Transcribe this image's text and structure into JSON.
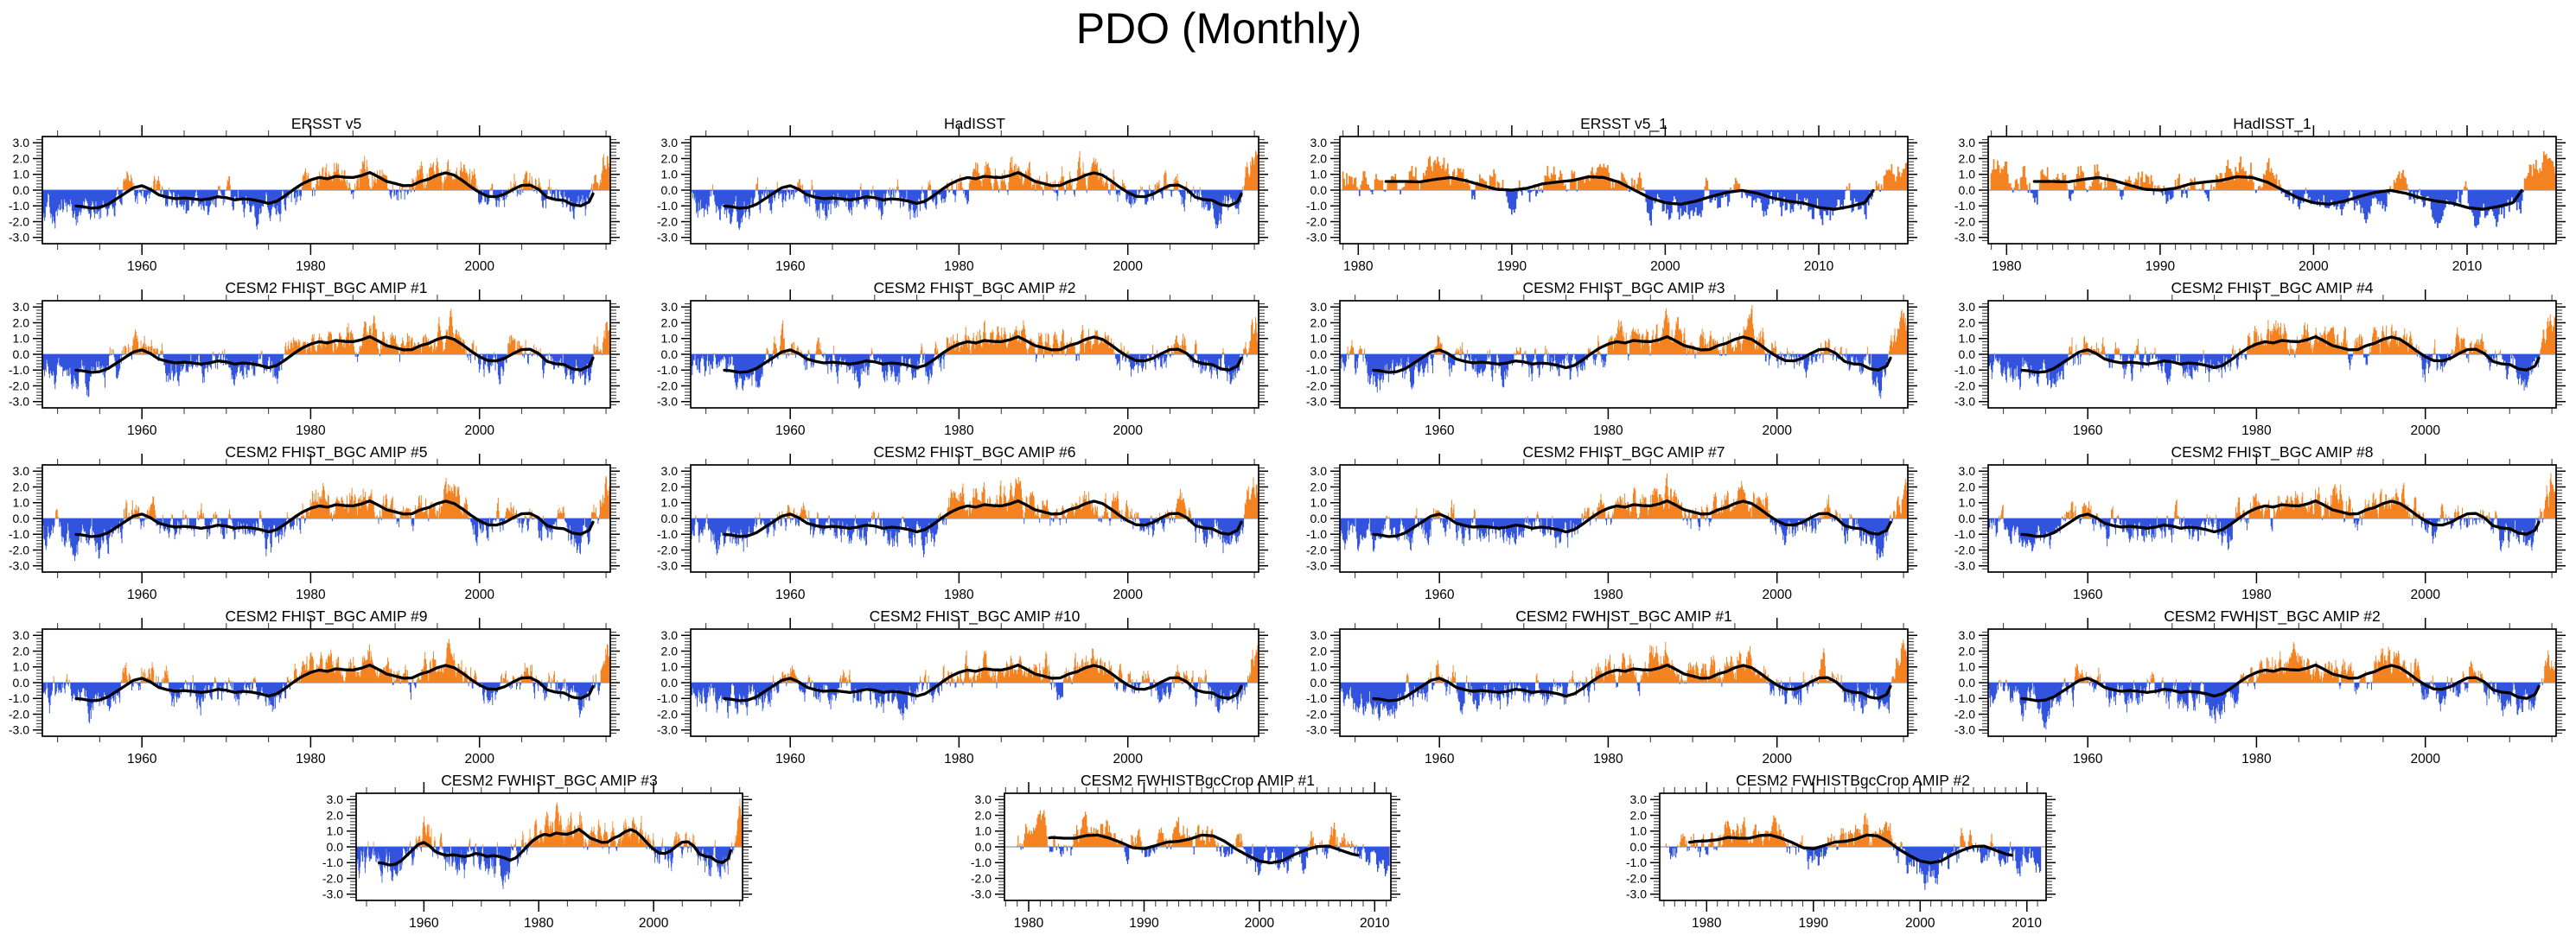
{
  "title": "PDO (Monthly)",
  "colors": {
    "positive": "#F58220",
    "negative": "#3153DE",
    "smooth_line": "#000000",
    "zero_line": "#9a9a9a",
    "frame": "#000000",
    "tick_major": "#000000",
    "tick_minor": "#444444",
    "text": "#000000"
  },
  "chart_data": {
    "type": "bar",
    "subtype": "monthly-anomaly-bars-with-lowpass-line",
    "title": "PDO (Monthly)",
    "ylabel": "",
    "ylim": [
      -3.4,
      3.4
    ],
    "yticks": [
      3.0,
      2.0,
      1.0,
      0.0,
      -1.0,
      -2.0,
      -3.0
    ],
    "ytick_labels": [
      "3.0",
      "2.0",
      "1.0",
      "0.0",
      "-1.0",
      "-2.0",
      "-3.0"
    ],
    "y_minor_step": 0.2,
    "grid": "off",
    "legend": "none",
    "shapes": {
      "long": {
        "years": [
          1948,
          1949,
          1950,
          1951,
          1952,
          1953,
          1954,
          1955,
          1956,
          1957,
          1958,
          1959,
          1960,
          1961,
          1962,
          1963,
          1964,
          1965,
          1966,
          1967,
          1968,
          1969,
          1970,
          1971,
          1972,
          1973,
          1974,
          1975,
          1976,
          1977,
          1978,
          1979,
          1980,
          1981,
          1982,
          1983,
          1984,
          1985,
          1986,
          1987,
          1988,
          1989,
          1990,
          1991,
          1992,
          1993,
          1994,
          1995,
          1996,
          1997,
          1998,
          1999,
          2000,
          2001,
          2002,
          2003,
          2004,
          2005,
          2006,
          2007,
          2008,
          2009,
          2010,
          2011,
          2012,
          2013,
          2014,
          2015
        ],
        "values": [
          -0.7,
          -0.8,
          -0.75,
          -0.95,
          -1.0,
          -1.05,
          -1.15,
          -1.1,
          -0.9,
          -0.55,
          -0.2,
          0.15,
          0.28,
          0.05,
          -0.3,
          -0.45,
          -0.55,
          -0.5,
          -0.55,
          -0.62,
          -0.55,
          -0.42,
          -0.48,
          -0.62,
          -0.55,
          -0.6,
          -0.7,
          -0.85,
          -0.7,
          -0.35,
          0.05,
          0.4,
          0.65,
          0.8,
          0.72,
          0.88,
          0.82,
          0.8,
          0.92,
          1.12,
          0.85,
          0.55,
          0.42,
          0.28,
          0.3,
          0.55,
          0.7,
          0.95,
          1.1,
          0.95,
          0.6,
          0.2,
          -0.15,
          -0.4,
          -0.42,
          -0.25,
          0.05,
          0.3,
          0.32,
          0.05,
          -0.45,
          -0.6,
          -0.65,
          -0.92,
          -1.0,
          -0.75,
          0.4,
          1.6
        ]
      },
      "short": {
        "years": [
          1979,
          1980,
          1981,
          1982,
          1983,
          1984,
          1985,
          1986,
          1987,
          1988,
          1989,
          1990,
          1991,
          1992,
          1993,
          1994,
          1995,
          1996,
          1997,
          1998,
          1999,
          2000,
          2001,
          2002,
          2003,
          2004,
          2005,
          2006,
          2007,
          2008,
          2009,
          2010,
          2011,
          2012,
          2013,
          2014,
          2015,
          2016
        ],
        "values": [
          0.9,
          0.6,
          0.55,
          0.55,
          0.55,
          0.52,
          0.68,
          0.8,
          0.6,
          0.32,
          0.05,
          0.0,
          0.12,
          0.4,
          0.52,
          0.62,
          0.85,
          0.8,
          0.5,
          0.0,
          -0.5,
          -0.8,
          -0.9,
          -0.7,
          -0.4,
          -0.15,
          -0.02,
          -0.2,
          -0.5,
          -0.7,
          -0.82,
          -1.1,
          -1.22,
          -1.05,
          -0.8,
          0.6,
          1.6,
          1.4
        ]
      },
      "crop": {
        "years": [
          1976,
          1977,
          1978,
          1979,
          1980,
          1981,
          1982,
          1983,
          1984,
          1985,
          1986,
          1987,
          1988,
          1989,
          1990,
          1991,
          1992,
          1993,
          1994,
          1995,
          1996,
          1997,
          1998,
          1999,
          2000,
          2001,
          2002,
          2003,
          2004,
          2005,
          2006,
          2007,
          2008,
          2009,
          2010,
          2011
        ],
        "values": [
          -0.2,
          0.0,
          0.25,
          0.35,
          0.38,
          0.45,
          0.6,
          0.55,
          0.55,
          0.72,
          0.75,
          0.55,
          0.28,
          -0.05,
          -0.12,
          0.08,
          0.3,
          0.35,
          0.5,
          0.75,
          0.7,
          0.35,
          -0.15,
          -0.55,
          -0.9,
          -1.02,
          -0.88,
          -0.5,
          -0.2,
          0.02,
          0.05,
          -0.2,
          -0.45,
          -0.6,
          -0.7,
          -0.75
        ]
      }
    },
    "panels": [
      {
        "id": "ersst-v5",
        "title": "ERSST v5",
        "row": 0,
        "col": 0,
        "shape": "long",
        "seed": 101,
        "x_domain": [
          1948.2,
          2015.5
        ],
        "x_ticks": [
          1960,
          1980,
          2000
        ],
        "x_minor_step": 5,
        "data_range": [
          1948.3,
          2015.45
        ],
        "line_range": [
          1952.2,
          2013.5
        ]
      },
      {
        "id": "hadisst",
        "title": "HadISST",
        "row": 0,
        "col": 1,
        "shape": "long",
        "seed": 102,
        "x_domain": [
          1948.2,
          2015.5
        ],
        "x_ticks": [
          1960,
          1980,
          2000
        ],
        "x_minor_step": 5,
        "data_range": [
          1948.3,
          2015.45
        ],
        "line_range": [
          1952.2,
          2013.5
        ]
      },
      {
        "id": "ersst-v5-1",
        "title": "ERSST v5_1",
        "row": 0,
        "col": 2,
        "shape": "short",
        "seed": 103,
        "x_domain": [
          1978.8,
          2015.8
        ],
        "x_ticks": [
          1980,
          1990,
          2000,
          2010
        ],
        "x_minor_step": 1,
        "data_range": [
          1979.0,
          2015.75
        ],
        "line_range": [
          1981.8,
          2013.6
        ]
      },
      {
        "id": "hadisst-1",
        "title": "HadISST_1",
        "row": 0,
        "col": 3,
        "shape": "short",
        "seed": 104,
        "x_domain": [
          1978.8,
          2015.8
        ],
        "x_ticks": [
          1980,
          1990,
          2000,
          2010
        ],
        "x_minor_step": 1,
        "data_range": [
          1979.0,
          2015.75
        ],
        "line_range": [
          1981.8,
          2013.6
        ]
      },
      {
        "id": "fhist-1",
        "title": "CESM2 FHIST_BGC AMIP #1",
        "row": 1,
        "col": 0,
        "shape": "long",
        "seed": 201,
        "x_domain": [
          1948.2,
          2015.5
        ],
        "x_ticks": [
          1960,
          1980,
          2000
        ],
        "x_minor_step": 5,
        "data_range": [
          1948.3,
          2015.45
        ],
        "line_range": [
          1952.2,
          2013.5
        ]
      },
      {
        "id": "fhist-2",
        "title": "CESM2 FHIST_BGC AMIP #2",
        "row": 1,
        "col": 1,
        "shape": "long",
        "seed": 202,
        "x_domain": [
          1948.2,
          2015.5
        ],
        "x_ticks": [
          1960,
          1980,
          2000
        ],
        "x_minor_step": 5,
        "data_range": [
          1948.3,
          2015.45
        ],
        "line_range": [
          1952.2,
          2013.5
        ]
      },
      {
        "id": "fhist-3",
        "title": "CESM2 FHIST_BGC AMIP #3",
        "row": 1,
        "col": 2,
        "shape": "long",
        "seed": 203,
        "x_domain": [
          1948.2,
          2015.5
        ],
        "x_ticks": [
          1960,
          1980,
          2000
        ],
        "x_minor_step": 5,
        "data_range": [
          1948.3,
          2015.45
        ],
        "line_range": [
          1952.2,
          2013.5
        ]
      },
      {
        "id": "fhist-4",
        "title": "CESM2 FHIST_BGC AMIP #4",
        "row": 1,
        "col": 3,
        "shape": "long",
        "seed": 204,
        "x_domain": [
          1948.2,
          2015.5
        ],
        "x_ticks": [
          1960,
          1980,
          2000
        ],
        "x_minor_step": 5,
        "data_range": [
          1948.3,
          2015.45
        ],
        "line_range": [
          1952.2,
          2013.5
        ]
      },
      {
        "id": "fhist-5",
        "title": "CESM2 FHIST_BGC AMIP #5",
        "row": 2,
        "col": 0,
        "shape": "long",
        "seed": 205,
        "x_domain": [
          1948.2,
          2015.5
        ],
        "x_ticks": [
          1960,
          1980,
          2000
        ],
        "x_minor_step": 5,
        "data_range": [
          1948.3,
          2015.45
        ],
        "line_range": [
          1952.2,
          2013.5
        ]
      },
      {
        "id": "fhist-6",
        "title": "CESM2 FHIST_BGC AMIP #6",
        "row": 2,
        "col": 1,
        "shape": "long",
        "seed": 206,
        "x_domain": [
          1948.2,
          2015.5
        ],
        "x_ticks": [
          1960,
          1980,
          2000
        ],
        "x_minor_step": 5,
        "data_range": [
          1948.3,
          2015.45
        ],
        "line_range": [
          1952.2,
          2013.5
        ]
      },
      {
        "id": "fhist-7",
        "title": "CESM2 FHIST_BGC AMIP #7",
        "row": 2,
        "col": 2,
        "shape": "long",
        "seed": 207,
        "x_domain": [
          1948.2,
          2015.5
        ],
        "x_ticks": [
          1960,
          1980,
          2000
        ],
        "x_minor_step": 5,
        "data_range": [
          1948.3,
          2015.45
        ],
        "line_range": [
          1952.2,
          2013.5
        ]
      },
      {
        "id": "fhist-8",
        "title": "CESM2 FHIST_BGC AMIP #8",
        "row": 2,
        "col": 3,
        "shape": "long",
        "seed": 208,
        "x_domain": [
          1948.2,
          2015.5
        ],
        "x_ticks": [
          1960,
          1980,
          2000
        ],
        "x_minor_step": 5,
        "data_range": [
          1948.3,
          2015.45
        ],
        "line_range": [
          1952.2,
          2013.5
        ]
      },
      {
        "id": "fhist-9",
        "title": "CESM2 FHIST_BGC AMIP #9",
        "row": 3,
        "col": 0,
        "shape": "long",
        "seed": 209,
        "x_domain": [
          1948.2,
          2015.5
        ],
        "x_ticks": [
          1960,
          1980,
          2000
        ],
        "x_minor_step": 5,
        "data_range": [
          1948.3,
          2015.45
        ],
        "line_range": [
          1952.2,
          2013.5
        ]
      },
      {
        "id": "fhist-10",
        "title": "CESM2 FHIST_BGC AMIP #10",
        "row": 3,
        "col": 1,
        "shape": "long",
        "seed": 210,
        "x_domain": [
          1948.2,
          2015.5
        ],
        "x_ticks": [
          1960,
          1980,
          2000
        ],
        "x_minor_step": 5,
        "data_range": [
          1948.3,
          2015.45
        ],
        "line_range": [
          1952.2,
          2013.5
        ]
      },
      {
        "id": "fwhist-1",
        "title": "CESM2 FWHIST_BGC AMIP #1",
        "row": 3,
        "col": 2,
        "shape": "long",
        "seed": 301,
        "x_domain": [
          1948.2,
          2015.5
        ],
        "x_ticks": [
          1960,
          1980,
          2000
        ],
        "x_minor_step": 5,
        "data_range": [
          1948.3,
          2015.45
        ],
        "line_range": [
          1952.2,
          2013.5
        ]
      },
      {
        "id": "fwhist-2",
        "title": "CESM2 FWHIST_BGC AMIP #2",
        "row": 3,
        "col": 3,
        "shape": "long",
        "seed": 302,
        "x_domain": [
          1948.2,
          2015.5
        ],
        "x_ticks": [
          1960,
          1980,
          2000
        ],
        "x_minor_step": 5,
        "data_range": [
          1948.3,
          2015.45
        ],
        "line_range": [
          1952.2,
          2013.5
        ]
      },
      {
        "id": "fwhist-3",
        "title": "CESM2 FWHIST_BGC AMIP #3",
        "row": 4,
        "col": 0,
        "shape": "long",
        "seed": 303,
        "x_domain": [
          1948.2,
          2015.5
        ],
        "x_ticks": [
          1960,
          1980,
          2000
        ],
        "x_minor_step": 5,
        "data_range": [
          1948.3,
          2015.45
        ],
        "line_range": [
          1952.2,
          2013.5
        ]
      },
      {
        "id": "fwhistbgccrop-1",
        "title": "CESM2 FWHISTBgcCrop AMIP #1",
        "row": 4,
        "col": 1,
        "shape": "crop",
        "seed": 401,
        "x_domain": [
          1977.9,
          2011.4
        ],
        "x_ticks": [
          1980,
          1990,
          2000,
          2010
        ],
        "x_minor_step": 1,
        "data_range": [
          1979.0,
          2011.3
        ],
        "line_range": [
          1981.8,
          2008.6
        ]
      },
      {
        "id": "fwhistbgccrop-2",
        "title": "CESM2 FWHISTBgcCrop AMIP #2",
        "row": 4,
        "col": 2,
        "shape": "crop",
        "seed": 402,
        "x_domain": [
          1975.6,
          2011.8
        ],
        "x_ticks": [
          1980,
          1990,
          2000,
          2010
        ],
        "x_minor_step": 1,
        "data_range": [
          1976.2,
          2011.3
        ],
        "line_range": [
          1978.4,
          2008.6
        ]
      }
    ]
  }
}
